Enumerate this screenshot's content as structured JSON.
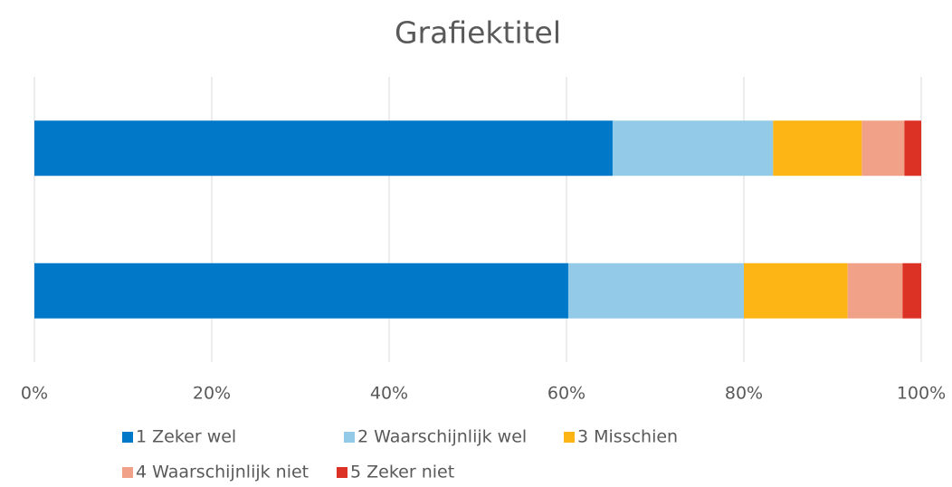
{
  "chart_data": {
    "type": "stacked-bar",
    "orientation": "horizontal",
    "title": "Grafiektitel",
    "categories": [
      null,
      null
    ],
    "series": [
      {
        "name": "1 Zeker wel",
        "color": "#0179c8",
        "values": [
          65.2,
          60.2
        ]
      },
      {
        "name": "2 Waarschijnlijk wel",
        "color": "#93cae8",
        "values": [
          18.1,
          19.8
        ]
      },
      {
        "name": "3 Misschien",
        "color": "#fdb515",
        "values": [
          10.0,
          11.7
        ]
      },
      {
        "name": "4 Waarschijnlijk niet",
        "color": "#f1a187",
        "values": [
          4.8,
          6.2
        ]
      },
      {
        "name": "5 Zeker niet",
        "color": "#dc3125",
        "values": [
          1.9,
          2.1
        ]
      }
    ],
    "xlim": [
      0,
      100
    ],
    "xticks": [
      {
        "value": 0,
        "label": "0%"
      },
      {
        "value": 20,
        "label": "20%"
      },
      {
        "value": 40,
        "label": "40%"
      },
      {
        "value": 60,
        "label": "60%"
      },
      {
        "value": 80,
        "label": "80%"
      },
      {
        "value": 100,
        "label": "100%"
      }
    ],
    "grid": true,
    "legend": "bottom"
  }
}
